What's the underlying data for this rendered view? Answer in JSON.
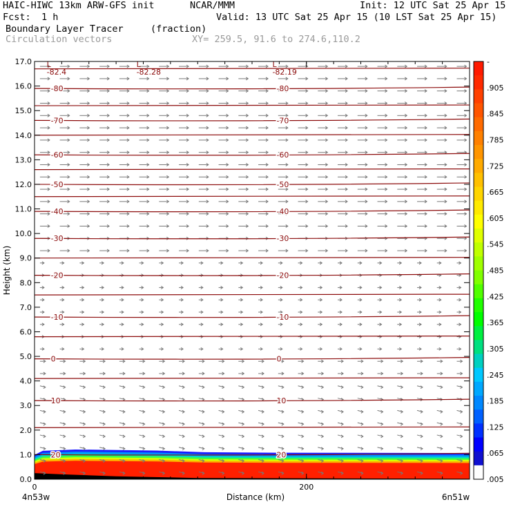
{
  "header": {
    "model": "HAIC-HIWC 13km ARW-GFS init",
    "org": "NCAR/MMM",
    "init": "Init: 12 UTC Sat 25 Apr 15",
    "fcst_label": "Fcst:",
    "fcst_value": "1 h",
    "valid": "Valid: 13 UTC Sat 25 Apr 15 (10 LST Sat 25 Apr 15)",
    "field_name": "Boundary Layer Tracer",
    "field_unit": "(fraction)",
    "overlay_name": "Circulation vectors",
    "cross_section": "XY= 259.5, 91.6 to 274.6,110.2"
  },
  "chart_data": {
    "type": "heatmap",
    "title": "Boundary Layer Tracer (fraction)",
    "ylabel": "Height (km)",
    "xlabel": "Distance (km)",
    "ylim": [
      0,
      17
    ],
    "xlim": [
      0,
      320
    ],
    "y_ticks": [
      "0.0",
      "1.0",
      "2.0",
      "3.0",
      "4.0",
      "5.0",
      "6.0",
      "7.0",
      "8.0",
      "9.0",
      "10.0",
      "11.0",
      "12.0",
      "13.0",
      "14.0",
      "15.0",
      "16.0",
      "17.0"
    ],
    "y_tick_values": [
      0,
      1,
      2,
      3,
      4,
      5,
      6,
      7,
      8,
      9,
      10,
      11,
      12,
      13,
      14,
      15,
      16,
      17
    ],
    "x_ticks": [
      {
        "value": 0,
        "label": "0"
      },
      {
        "value": 200,
        "label": "200"
      }
    ],
    "x_end_labels": {
      "left": "4n53w",
      "right": "6n51w"
    },
    "colorbar": {
      "labels": [
        "-",
        ".905",
        ".845",
        ".785",
        ".725",
        ".665",
        ".605",
        ".545",
        ".485",
        ".425",
        ".365",
        ".305",
        ".245",
        ".185",
        ".125",
        ".065",
        ".005"
      ],
      "colors": [
        "#ff1a00",
        "#ff2a00",
        "#ff4000",
        "#ff5500",
        "#ff6a00",
        "#ff8000",
        "#ff9500",
        "#ffaa00",
        "#ffc000",
        "#ffd500",
        "#ffea00",
        "#ffff00",
        "#e0ff00",
        "#c0ff00",
        "#a0ff00",
        "#80ff00",
        "#50ff00",
        "#20ff00",
        "#00ff00",
        "#00f040",
        "#00e080",
        "#00d0c0",
        "#00c8ff",
        "#00a8ff",
        "#0088ff",
        "#0060ff",
        "#0030ff",
        "#0000ff",
        "#1010d0",
        "#ffffff"
      ]
    },
    "temperature_contours": [
      {
        "label": "-80",
        "y": 15.9
      },
      {
        "label": "-70",
        "y": 14.6
      },
      {
        "label": "-60",
        "y": 13.2
      },
      {
        "label": "-50",
        "y": 12.0
      },
      {
        "label": "-40",
        "y": 10.9
      },
      {
        "label": "-30",
        "y": 9.8
      },
      {
        "label": "-20",
        "y": 8.3
      },
      {
        "label": "-10",
        "y": 6.6
      },
      {
        "label": "0",
        "y": 4.9
      },
      {
        "label": "10",
        "y": 3.2
      },
      {
        "label": "20",
        "y": 1.0
      }
    ],
    "lows": [
      {
        "label": "L",
        "value": "-82.4",
        "x": 12
      },
      {
        "label": "L",
        "value": "-82.28",
        "x": 78
      },
      {
        "label": "L",
        "value": "-82.19",
        "x": 178
      }
    ],
    "boundary_layer_top_km": 1.1
  }
}
